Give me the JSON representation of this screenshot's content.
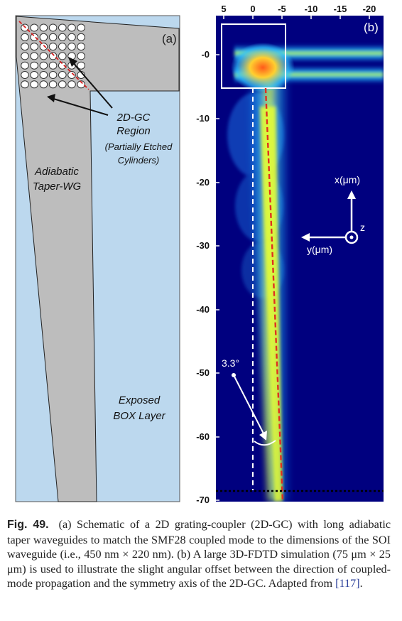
{
  "panel_a": {
    "label": "(a)",
    "annotation_2dgc_line1": "2D-GC",
    "annotation_2dgc_line2": "Region",
    "annotation_2dgc_sub1": "(Partially Etched",
    "annotation_2dgc_sub2": "Cylinders)",
    "annotation_taper_line1": "Adiabatic",
    "annotation_taper_line2": "Taper-WG",
    "annotation_box_line1": "Exposed",
    "annotation_box_line2": "BOX Layer",
    "colors": {
      "taper": "#bdbdbd",
      "box": "#bcd8ee",
      "dashed_axis": "#d62020"
    }
  },
  "panel_b": {
    "label": "(b)",
    "top_ticks": [
      "5",
      "0",
      "-5",
      "-10",
      "-15",
      "-20"
    ],
    "left_ticks": [
      "-0",
      "-10",
      "-20",
      "-30",
      "-40",
      "-50",
      "-60",
      "-70"
    ],
    "angle_label": "3.3°",
    "axis_x_label": "x(μm)",
    "axis_y_label": "y(μm)",
    "axis_z_label": "z",
    "colors": {
      "background": "#00007f",
      "beam": "#e8ff30",
      "offset_line": "#e03020"
    }
  },
  "caption": {
    "figure_label": "Fig. 49.",
    "text_before_ref": "(a) Schematic of a 2D grating-coupler (2D-GC) with long adiabatic taper waveguides to match the SMF28 coupled mode to the dimensions of the SOI waveguide (i.e., 450 nm × 220 nm). (b) A large 3D-FDTD simulation (75 μm × 25 μm) is used to illustrate the slight angular offset between the direction of coupled-mode propagation and the symmetry axis of the 2D-GC. Adapted from ",
    "ref": "[117]",
    "text_after_ref": "."
  }
}
